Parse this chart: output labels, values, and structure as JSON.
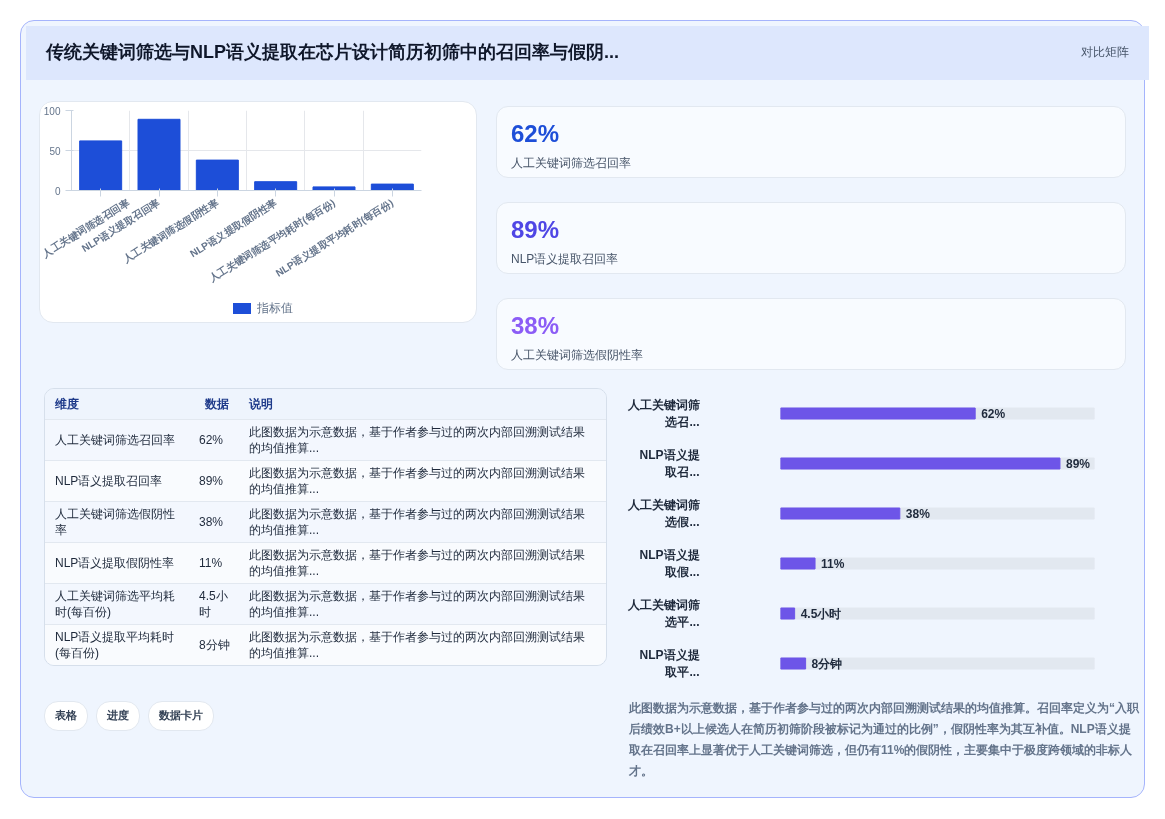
{
  "chart_data": [
    {
      "type": "other",
      "title": "传统关键词筛选与NLP语义提取在芯片设计简历初筛中的召回率与假阴...",
      "subtitle": "对比矩阵"
    },
    {
      "type": "bar",
      "categories": [
        "人工关键词筛选召回率",
        "NLP语义提取召回率",
        "人工关键词筛选假阴性率",
        "NLP语义提取假阴性率",
        "人工关键词筛选平均耗时(每百份)",
        "NLP语义提取平均耗时(每百份)"
      ],
      "series": [
        {
          "name": "指标值",
          "color": "#1d4ed8",
          "values": [
            62,
            89,
            38,
            11,
            4.5,
            8
          ]
        }
      ],
      "ylim": [
        0,
        100
      ],
      "yticks": [
        0,
        50,
        100
      ],
      "grid": true,
      "legend": "bottom"
    },
    {
      "type": "other",
      "annotations": [
        "62%",
        "人工关键词筛选召回率",
        "89%",
        "NLP语义提取召回率",
        "38%",
        "人工关键词筛选假阴性率"
      ],
      "colors": [
        "#1d4ed8",
        "#4f46e5",
        "#8b5cf6"
      ]
    },
    {
      "type": "other",
      "annotations": [
        "维度",
        "数据",
        "说明",
        "此图数据为示意数据，基于作者参与过的两次内部回溯测试结果的均值推算...",
        "此图数据为示意数据，基于作者参与过的两次内部回溯测试结果的均值推算...",
        "此图数据为示意数据，基于作者参与过的两次内部回溯测试结果的均值推算...",
        "此图数据为示意数据，基于作者参与过的两次内部回溯测试结果的均值推算...",
        "此图数据为示意数据，基于作者参与过的两次内部回溯测试结果的均值推算...",
        "此图数据为示意数据，基于作者参与过的两次内部回溯测试结果的均值推算..."
      ],
      "categories": [
        "人工关键词筛选召回率",
        "NLP语义提取召回率",
        "人工关键词筛选假阴性率",
        "NLP语义提取假阴性率",
        "人工关键词筛选平均耗时(每百份)",
        "NLP语义提取平均耗时(每百份)"
      ],
      "value_labels": [
        "62%",
        "89%",
        "38%",
        "11%",
        "4.5小时",
        "8分钟"
      ]
    },
    {
      "type": "bar",
      "orientation": "horizontal",
      "categories": [
        "人工关键词筛选召...",
        "NLP语义提取召...",
        "人工关键词筛选假...",
        "NLP语义提取假...",
        "人工关键词筛选平...",
        "NLP语义提取平..."
      ],
      "values": [
        62,
        89,
        38,
        11,
        4.5,
        8
      ],
      "value_labels": [
        "62%",
        "89%",
        "38%",
        "11%",
        "4.5小时",
        "8分钟"
      ],
      "color": "#6d55e8",
      "xlim": [
        0,
        100
      ],
      "tick_labels": false,
      "annotations": [
        "此图数据为示意数据，基于作者参与过的两次内部回溯测试结果的均值推算。召回率定义为“入职后绩效B+以上候选人在简历初筛阶段被标记为通过的比例”，假阴性率为其互补值。NLP语义提取在召回率上显著优于人工关键词筛选，但仍有11%的假阴性，主要集中于极度跨领域的非标人才。",
        "表格",
        "进度",
        "数据卡片"
      ]
    }
  ]
}
